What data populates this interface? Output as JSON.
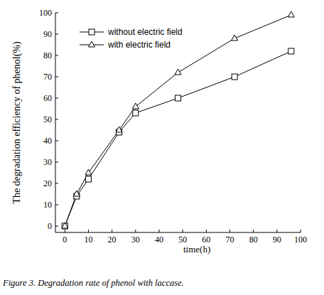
{
  "chart_data": {
    "type": "line",
    "title": "Figure 3. Degradation rate of phenol with laccase.",
    "x_label": "time(h)",
    "y_label": "The degradation efficiency of phenol(%)",
    "x": [
      0,
      5,
      10,
      23,
      30,
      48,
      72,
      96
    ],
    "series": [
      {
        "name": "without electric field",
        "color": "#000000",
        "marker": "square",
        "values": [
          0,
          14,
          22,
          44,
          53,
          60,
          70,
          82
        ]
      },
      {
        "name": "with electric field",
        "color": "#000000",
        "marker": "triangle",
        "values": [
          0,
          15,
          25,
          45,
          56,
          72,
          88,
          99
        ]
      }
    ],
    "xlim": [
      -4,
      100
    ],
    "xticks": [
      0,
      10,
      20,
      30,
      40,
      50,
      60,
      70,
      80,
      90,
      100
    ],
    "ylim": [
      -3,
      100
    ],
    "yticks": [
      0,
      10,
      20,
      30,
      40,
      50,
      60,
      70,
      80,
      90,
      100
    ],
    "grid": false,
    "legend": "upper left"
  }
}
